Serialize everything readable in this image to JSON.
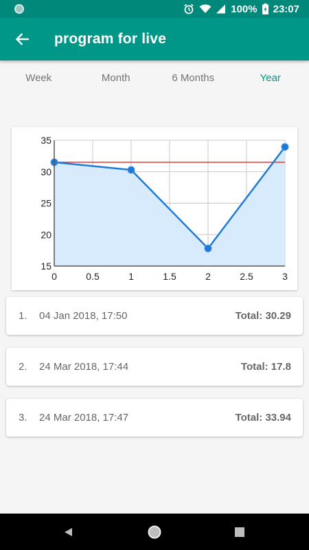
{
  "status_bar": {
    "battery": "100%",
    "time": "23:07",
    "icons": [
      "app-notification-icon",
      "alarm-icon",
      "wifi-icon",
      "signal-icon",
      "battery-charging-icon"
    ]
  },
  "app_bar": {
    "title": "program for live",
    "back_icon": "arrow-left-icon"
  },
  "tabs": [
    {
      "label": "Week",
      "active": false
    },
    {
      "label": "Month",
      "active": false
    },
    {
      "label": "6 Months",
      "active": false
    },
    {
      "label": "Year",
      "active": true
    }
  ],
  "chart_data": {
    "type": "line",
    "x": [
      0,
      1,
      2,
      3
    ],
    "y": [
      31.5,
      30.29,
      17.8,
      33.94
    ],
    "reference_line": 31.5,
    "xlim": [
      0,
      3
    ],
    "ylim": [
      15,
      35
    ],
    "xticks": [
      "0",
      "0.5",
      "1",
      "1.5",
      "2",
      "2.5",
      "3"
    ],
    "xtick_values": [
      0,
      0.5,
      1,
      1.5,
      2,
      2.5,
      3
    ],
    "yticks": [
      "15",
      "20",
      "25",
      "30",
      "35"
    ],
    "ytick_values": [
      15,
      20,
      25,
      30,
      35
    ],
    "grid": true,
    "colors": {
      "line": "#1e7ad6",
      "fill": "#d8ebfc",
      "reference": "#e53935",
      "grid": "#c8c8c8"
    }
  },
  "entries": [
    {
      "index": "1.",
      "date": "04 Jan 2018, 17:50",
      "total": "Total: 30.29"
    },
    {
      "index": "2.",
      "date": "24 Mar 2018, 17:44",
      "total": "Total: 17.8"
    },
    {
      "index": "3.",
      "date": "24 Mar 2018, 17:47",
      "total": "Total: 33.94"
    }
  ],
  "nav_bar": {
    "icons": [
      "back-triangle-icon",
      "home-circle-icon",
      "recents-square-icon"
    ]
  },
  "colors": {
    "primary": "#009688",
    "status_bar": "#00897b",
    "active_tab": "#009688"
  }
}
